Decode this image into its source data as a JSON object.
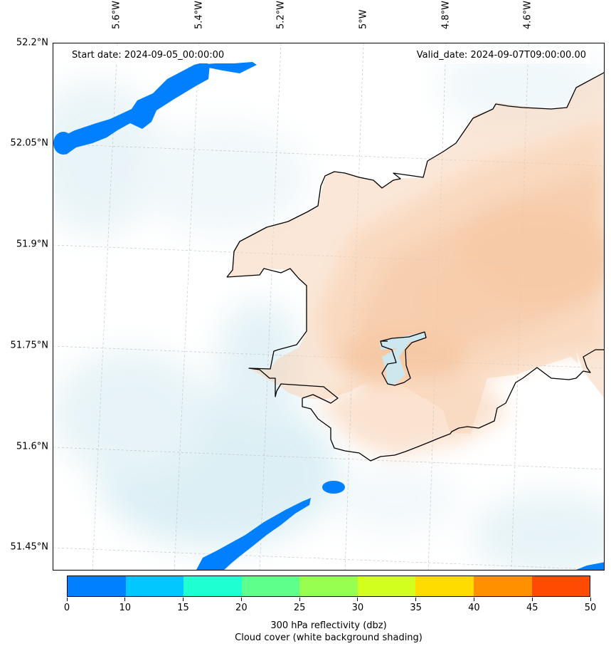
{
  "map": {
    "start_date": "Start date: 2024-09-05_00:00:00",
    "valid_date": "Valid_date: 2024-09-07T09:00:00.00",
    "longitude_labels": [
      "5.6°W",
      "5.4°W",
      "5.2°W",
      "5°W",
      "4.8°W",
      "4.6°W"
    ],
    "latitude_labels": [
      "52.2°N",
      "52.05°N",
      "51.9°N",
      "51.75°N",
      "51.6°N",
      "51.45°N"
    ]
  },
  "colorbar": {
    "ticks": [
      "0",
      "10",
      "15",
      "20",
      "25",
      "30",
      "35",
      "40",
      "45",
      "50"
    ],
    "colors": [
      "#0080ff",
      "#00c8ff",
      "#1effd2",
      "#5fff8c",
      "#97ff50",
      "#d2ff1e",
      "#ffdc00",
      "#ff9100",
      "#ff4b00"
    ],
    "label_line1": "300 hPa reflectivity (dbz)",
    "label_line2": "Cloud cover (white background shading)"
  },
  "palette": {
    "reflectivity_blue": "#0080ff",
    "cloud_light": "#d6edf3",
    "warm_shading": "#f4b98b",
    "coastline": "#000000"
  }
}
